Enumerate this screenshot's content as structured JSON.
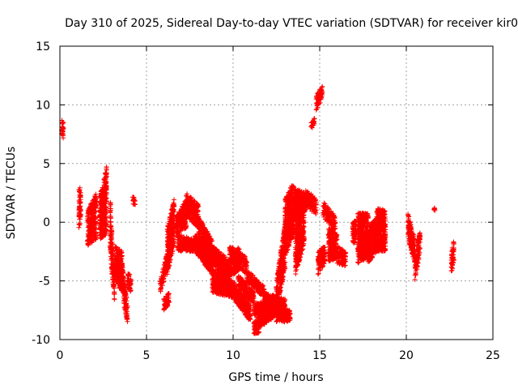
{
  "chart_data": {
    "type": "scatter",
    "title": "Day 310 of 2025, Sidereal Day-to-day VTEC variation (SDTVAR) for receiver kir0",
    "xlabel": "GPS time / hours",
    "ylabel": "SDTVAR / TECUs",
    "xlim": [
      0,
      25
    ],
    "ylim": [
      -10,
      15
    ],
    "xticks": [
      0,
      5,
      10,
      15,
      20,
      25
    ],
    "yticks": [
      -10,
      -5,
      0,
      5,
      10,
      15
    ],
    "xtick_labels": [
      "0",
      "5",
      "10",
      "15",
      "20",
      "25"
    ],
    "ytick_labels": [
      "-10",
      "-5",
      "0",
      "5",
      "10",
      "15"
    ],
    "grid": true,
    "marker": "plus",
    "color": "#ff0000",
    "segments": [
      {
        "x": [
          0.1,
          0.2
        ],
        "y": [
          [
            7.5,
            8.7
          ],
          [
            6.8,
            8.5
          ]
        ]
      },
      {
        "x": [
          1.1,
          1.2
        ],
        "y": [
          [
            -0.5,
            3.2
          ],
          [
            0.0,
            2.8
          ]
        ]
      },
      {
        "x": [
          1.6,
          2.1
        ],
        "y": [
          [
            -2.0,
            1.0
          ],
          [
            -1.5,
            2.5
          ]
        ]
      },
      {
        "x": [
          2.3,
          2.7
        ],
        "y": [
          [
            -1.5,
            2.2
          ],
          [
            -1.0,
            4.8
          ]
        ]
      },
      {
        "x": [
          2.9,
          3.15
        ],
        "y": [
          [
            -2.5,
            2.5
          ],
          [
            -7.0,
            -5.0
          ]
        ]
      },
      {
        "x": [
          3.2,
          3.6
        ],
        "y": [
          [
            -5.0,
            -2.0
          ],
          [
            -6.0,
            -2.5
          ]
        ]
      },
      {
        "x": [
          3.6,
          3.9
        ],
        "y": [
          [
            -6.5,
            -3.5
          ],
          [
            -8.5,
            -7.0
          ]
        ]
      },
      {
        "x": [
          3.9,
          4.1
        ],
        "y": [
          [
            -5.5,
            -4.2
          ],
          [
            -6.0,
            -4.5
          ]
        ]
      },
      {
        "x": [
          4.2,
          4.35
        ],
        "y": [
          [
            1.5,
            2.2
          ],
          [
            1.5,
            2.0
          ]
        ]
      },
      {
        "x": [
          5.8,
          6.2
        ],
        "y": [
          [
            -6.0,
            -5.0
          ],
          [
            -4.0,
            -2.5
          ]
        ]
      },
      {
        "x": [
          6.0,
          6.3
        ],
        "y": [
          [
            -7.5,
            -6.5
          ],
          [
            -7.0,
            -6.0
          ]
        ]
      },
      {
        "x": [
          6.2,
          6.6
        ],
        "y": [
          [
            -4.5,
            -0.5
          ],
          [
            -2.0,
            2.0
          ]
        ]
      },
      {
        "x": [
          6.7,
          7.3
        ],
        "y": [
          [
            -1.0,
            0.5
          ],
          [
            -0.5,
            2.0
          ]
        ]
      },
      {
        "x": [
          7.3,
          8.0
        ],
        "y": [
          [
            0.5,
            2.5
          ],
          [
            -0.5,
            1.5
          ]
        ]
      },
      {
        "x": [
          8.0,
          8.8
        ],
        "y": [
          [
            -1.5,
            0.5
          ],
          [
            -3.0,
            -1.5
          ]
        ]
      },
      {
        "x": [
          8.8,
          9.6
        ],
        "y": [
          [
            -3.5,
            -2.0
          ],
          [
            -5.0,
            -3.0
          ]
        ]
      },
      {
        "x": [
          9.6,
          10.4
        ],
        "y": [
          [
            -5.0,
            -3.5
          ],
          [
            -4.0,
            -2.0
          ]
        ]
      },
      {
        "x": [
          6.8,
          7.8
        ],
        "y": [
          [
            -2.5,
            -1.0
          ],
          [
            -2.5,
            -1.5
          ]
        ]
      },
      {
        "x": [
          7.8,
          8.8
        ],
        "y": [
          [
            -2.5,
            -1.0
          ],
          [
            -4.5,
            -3.0
          ]
        ]
      },
      {
        "x": [
          8.8,
          10.0
        ],
        "y": [
          [
            -6.0,
            -4.0
          ],
          [
            -6.5,
            -5.0
          ]
        ]
      },
      {
        "x": [
          10.0,
          11.0
        ],
        "y": [
          [
            -6.5,
            -5.0
          ],
          [
            -8.5,
            -7.0
          ]
        ]
      },
      {
        "x": [
          9.8,
          10.8
        ],
        "y": [
          [
            -3.0,
            -2.0
          ],
          [
            -4.5,
            -3.0
          ]
        ]
      },
      {
        "x": [
          10.8,
          11.8
        ],
        "y": [
          [
            -5.0,
            -4.0
          ],
          [
            -6.5,
            -5.5
          ]
        ]
      },
      {
        "x": [
          11.8,
          13.0
        ],
        "y": [
          [
            -7.0,
            -6.0
          ],
          [
            -7.5,
            -6.5
          ]
        ]
      },
      {
        "x": [
          10.3,
          11.2
        ],
        "y": [
          [
            -5.5,
            -4.5
          ],
          [
            -7.0,
            -6.0
          ]
        ]
      },
      {
        "x": [
          11.2,
          12.2
        ],
        "y": [
          [
            -8.0,
            -7.0
          ],
          [
            -7.5,
            -6.5
          ]
        ]
      },
      {
        "x": [
          11.2,
          11.5
        ],
        "y": [
          [
            -9.5,
            -8.5
          ],
          [
            -9.5,
            -8.0
          ]
        ]
      },
      {
        "x": [
          11.5,
          12.5
        ],
        "y": [
          [
            -9.0,
            -8.0
          ],
          [
            -8.0,
            -7.0
          ]
        ]
      },
      {
        "x": [
          12.5,
          13.3
        ],
        "y": [
          [
            -8.5,
            -7.0
          ],
          [
            -8.5,
            -7.5
          ]
        ]
      },
      {
        "x": [
          12.5,
          13.0
        ],
        "y": [
          [
            -7.5,
            -5.0
          ],
          [
            -4.0,
            0.0
          ]
        ]
      },
      {
        "x": [
          13.0,
          13.5
        ],
        "y": [
          [
            -3.0,
            2.0
          ],
          [
            -1.0,
            3.5
          ]
        ]
      },
      {
        "x": [
          13.5,
          14.2
        ],
        "y": [
          [
            0.0,
            3.0
          ],
          [
            1.0,
            2.5
          ]
        ]
      },
      {
        "x": [
          13.6,
          14.1
        ],
        "y": [
          [
            -4.5,
            0.0
          ],
          [
            -2.0,
            1.5
          ]
        ]
      },
      {
        "x": [
          14.2,
          14.8
        ],
        "y": [
          [
            1.5,
            2.8
          ],
          [
            0.5,
            2.0
          ]
        ]
      },
      {
        "x": [
          14.5,
          14.7
        ],
        "y": [
          [
            7.9,
            8.5
          ],
          [
            8.3,
            9.0
          ]
        ]
      },
      {
        "x": [
          14.8,
          15.15
        ],
        "y": [
          [
            9.5,
            10.8
          ],
          [
            10.5,
            11.8
          ]
        ]
      },
      {
        "x": [
          14.9,
          15.3
        ],
        "y": [
          [
            -4.5,
            -2.5
          ],
          [
            -3.5,
            -2.0
          ]
        ]
      },
      {
        "x": [
          15.2,
          15.9
        ],
        "y": [
          [
            0.5,
            1.8
          ],
          [
            -1.0,
            0.5
          ]
        ]
      },
      {
        "x": [
          15.5,
          16.0
        ],
        "y": [
          [
            -3.5,
            -0.5
          ],
          [
            -3.0,
            -1.0
          ]
        ]
      },
      {
        "x": [
          16.0,
          16.5
        ],
        "y": [
          [
            -3.5,
            -2.0
          ],
          [
            -3.8,
            -2.5
          ]
        ]
      },
      {
        "x": [
          16.9,
          17.1
        ],
        "y": [
          [
            -2.0,
            0.0
          ],
          [
            -1.8,
            0.2
          ]
        ]
      },
      {
        "x": [
          17.2,
          17.8
        ],
        "y": [
          [
            -3.5,
            0.8
          ],
          [
            -3.0,
            0.8
          ]
        ]
      },
      {
        "x": [
          17.8,
          18.3
        ],
        "y": [
          [
            -3.5,
            -0.5
          ],
          [
            -2.5,
            0.5
          ]
        ]
      },
      {
        "x": [
          18.3,
          18.8
        ],
        "y": [
          [
            -2.5,
            1.2
          ],
          [
            -2.5,
            1.0
          ]
        ]
      },
      {
        "x": [
          20.1,
          20.5
        ],
        "y": [
          [
            -1.5,
            0.8
          ],
          [
            -3.5,
            -1.5
          ]
        ]
      },
      {
        "x": [
          20.5,
          20.8
        ],
        "y": [
          [
            -5.0,
            -3.0
          ],
          [
            -2.5,
            -0.5
          ]
        ]
      },
      {
        "x": [
          21.6,
          21.65
        ],
        "y": [
          [
            1.0,
            1.3
          ],
          [
            0.9,
            1.2
          ]
        ]
      },
      {
        "x": [
          22.6,
          22.75
        ],
        "y": [
          [
            -4.5,
            -2.5
          ],
          [
            -3.5,
            -1.5
          ]
        ]
      }
    ]
  }
}
